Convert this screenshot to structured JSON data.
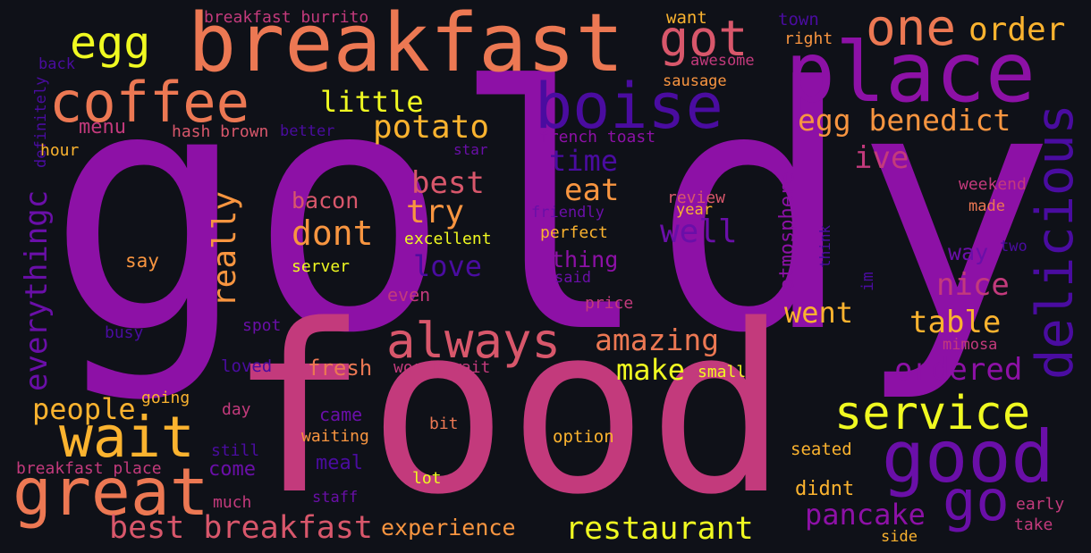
{
  "palette": {
    "background": "#0f1118",
    "purple": "#8d11a6",
    "violet": "#6a0fa8",
    "indigo": "#4a0ca0",
    "magenta": "#c33a7c",
    "pink": "#d8576b",
    "coral": "#ec7853",
    "orange": "#f89540",
    "amber": "#fbb32f",
    "yellow": "#f0f921"
  },
  "words": [
    {
      "text": "goldy",
      "color": "#8d11a6",
      "rot": 0
    },
    {
      "text": "food",
      "color": "#c33a7c",
      "rot": 0
    },
    {
      "text": "breakfast",
      "color": "#ec7853",
      "rot": 0
    },
    {
      "text": "place",
      "color": "#8d11a6",
      "rot": 0
    },
    {
      "text": "coffee",
      "color": "#ec7853",
      "rot": 0
    },
    {
      "text": "egg",
      "color": "#f0f921",
      "rot": 0
    },
    {
      "text": "got",
      "color": "#d8576b",
      "rot": 0
    },
    {
      "text": "boise",
      "color": "#4a0ca0",
      "rot": 0
    },
    {
      "text": "one",
      "color": "#ec7853",
      "rot": 0
    },
    {
      "text": "order",
      "color": "#fbb32f",
      "rot": 0
    },
    {
      "text": "delicious",
      "color": "#4a0ca0",
      "rot": -90
    },
    {
      "text": "egg benedict",
      "color": "#f89540",
      "rot": 0
    },
    {
      "text": "ive",
      "color": "#c33a7c",
      "rot": 0
    },
    {
      "text": "good",
      "color": "#6a0fa8",
      "rot": 0
    },
    {
      "text": "go",
      "color": "#6a0fa8",
      "rot": 0
    },
    {
      "text": "service",
      "color": "#f0f921",
      "rot": 0
    },
    {
      "text": "great",
      "color": "#ec7853",
      "rot": 0
    },
    {
      "text": "wait",
      "color": "#fbb32f",
      "rot": 0
    },
    {
      "text": "always",
      "color": "#d8576b",
      "rot": 0
    },
    {
      "text": "little",
      "color": "#f0f921",
      "rot": 0
    },
    {
      "text": "potato",
      "color": "#fbb32f",
      "rot": 0
    },
    {
      "text": "menu",
      "color": "#c33a7c",
      "rot": 0
    },
    {
      "text": "time",
      "color": "#4a0ca0",
      "rot": 0
    },
    {
      "text": "best",
      "color": "#d8576b",
      "rot": 0
    },
    {
      "text": "eat",
      "color": "#f89540",
      "rot": 0
    },
    {
      "text": "try",
      "color": "#f89540",
      "rot": 0
    },
    {
      "text": "well",
      "color": "#6a0fa8",
      "rot": 0
    },
    {
      "text": "dont",
      "color": "#f89540",
      "rot": 0
    },
    {
      "text": "bacon",
      "color": "#d8576b",
      "rot": 0
    },
    {
      "text": "love",
      "color": "#4a0ca0",
      "rot": 0
    },
    {
      "text": "really",
      "color": "#f89540",
      "rot": -90
    },
    {
      "text": "everythingc",
      "color": "#6a0fa8",
      "rot": -90
    },
    {
      "text": "amazing",
      "color": "#ec7853",
      "rot": 0
    },
    {
      "text": "nice",
      "color": "#c33a7c",
      "rot": 0
    },
    {
      "text": "went",
      "color": "#fbb32f",
      "rot": 0
    },
    {
      "text": "table",
      "color": "#fbb32f",
      "rot": 0
    },
    {
      "text": "ordered",
      "color": "#8d11a6",
      "rot": 0
    },
    {
      "text": "make",
      "color": "#f0f921",
      "rot": 0
    },
    {
      "text": "people",
      "color": "#fbb32f",
      "rot": 0
    },
    {
      "text": "best breakfast",
      "color": "#d8576b",
      "rot": 0
    },
    {
      "text": "experience",
      "color": "#f89540",
      "rot": 0
    },
    {
      "text": "restaurant",
      "color": "#f0f921",
      "rot": 0
    },
    {
      "text": "pancake",
      "color": "#8d11a6",
      "rot": 0
    },
    {
      "text": "atmosphere",
      "color": "#8d11a6",
      "rot": -90
    },
    {
      "text": "thing",
      "color": "#8d11a6",
      "rot": 0
    },
    {
      "text": "fresh",
      "color": "#ec7853",
      "rot": 0
    },
    {
      "text": "came",
      "color": "#6a0fa8",
      "rot": 0
    },
    {
      "text": "meal",
      "color": "#4a0ca0",
      "rot": 0
    },
    {
      "text": "come",
      "color": "#6a0fa8",
      "rot": 0
    },
    {
      "text": "even",
      "color": "#c33a7c",
      "rot": 0
    },
    {
      "text": "say",
      "color": "#f89540",
      "rot": 0
    },
    {
      "text": "way",
      "color": "#6a0fa8",
      "rot": 0
    },
    {
      "text": "didnt",
      "color": "#fbb32f",
      "rot": 0
    },
    {
      "text": "breakfast burrito",
      "color": "#c33a7c",
      "rot": 0
    },
    {
      "text": "want",
      "color": "#fbb32f",
      "rot": 0
    },
    {
      "text": "town",
      "color": "#4a0ca0",
      "rot": 0
    },
    {
      "text": "right",
      "color": "#f89540",
      "rot": 0
    },
    {
      "text": "awesome",
      "color": "#c33a7c",
      "rot": 0
    },
    {
      "text": "back",
      "color": "#4a0ca0",
      "rot": 0
    },
    {
      "text": "definitely",
      "color": "#4a0ca0",
      "rot": -90
    },
    {
      "text": "hour",
      "color": "#fbb32f",
      "rot": 0
    },
    {
      "text": "hash brown",
      "color": "#d8576b",
      "rot": 0
    },
    {
      "text": "better",
      "color": "#4a0ca0",
      "rot": 0
    },
    {
      "text": "sausage",
      "color": "#f89540",
      "rot": 0
    },
    {
      "text": "french toast",
      "color": "#8d11a6",
      "rot": 0
    },
    {
      "text": "star",
      "color": "#6a0fa8",
      "rot": 0
    },
    {
      "text": "review",
      "color": "#d8576b",
      "rot": 0
    },
    {
      "text": "year",
      "color": "#fbb32f",
      "rot": 0
    },
    {
      "text": "friendly",
      "color": "#6a0fa8",
      "rot": 0
    },
    {
      "text": "weekend",
      "color": "#c33a7c",
      "rot": 0
    },
    {
      "text": "made",
      "color": "#ec7853",
      "rot": 0
    },
    {
      "text": "excellent",
      "color": "#f0f921",
      "rot": 0
    },
    {
      "text": "perfect",
      "color": "#fbb32f",
      "rot": 0
    },
    {
      "text": "two",
      "color": "#4a0ca0",
      "rot": 0
    },
    {
      "text": "think",
      "color": "#4a0ca0",
      "rot": -90
    },
    {
      "text": "im",
      "color": "#4a0ca0",
      "rot": -90
    },
    {
      "text": "server",
      "color": "#f0f921",
      "rot": 0
    },
    {
      "text": "said",
      "color": "#6a0fa8",
      "rot": 0
    },
    {
      "text": "price",
      "color": "#c33a7c",
      "rot": 0
    },
    {
      "text": "spot",
      "color": "#6a0fa8",
      "rot": 0
    },
    {
      "text": "busy",
      "color": "#4a0ca0",
      "rot": 0
    },
    {
      "text": "mimosa",
      "color": "#c33a7c",
      "rot": 0
    },
    {
      "text": "loved",
      "color": "#4a0ca0",
      "rot": 0
    },
    {
      "text": "worth wait",
      "color": "#c33a7c",
      "rot": 0
    },
    {
      "text": "small",
      "color": "#f0f921",
      "rot": 0
    },
    {
      "text": "going",
      "color": "#fbb32f",
      "rot": 0
    },
    {
      "text": "day",
      "color": "#c33a7c",
      "rot": 0
    },
    {
      "text": "bit",
      "color": "#ec7853",
      "rot": 0
    },
    {
      "text": "still",
      "color": "#4a0ca0",
      "rot": 0
    },
    {
      "text": "waiting",
      "color": "#f89540",
      "rot": 0
    },
    {
      "text": "option",
      "color": "#fbb32f",
      "rot": 0
    },
    {
      "text": "seated",
      "color": "#fbb32f",
      "rot": 0
    },
    {
      "text": "breakfast place",
      "color": "#c33a7c",
      "rot": 0
    },
    {
      "text": "lot",
      "color": "#f0f921",
      "rot": 0
    },
    {
      "text": "much",
      "color": "#c33a7c",
      "rot": 0
    },
    {
      "text": "staff",
      "color": "#6a0fa8",
      "rot": 0
    },
    {
      "text": "early",
      "color": "#c33a7c",
      "rot": 0
    },
    {
      "text": "take",
      "color": "#c33a7c",
      "rot": 0
    },
    {
      "text": "side",
      "color": "#fbb32f",
      "rot": 0
    }
  ]
}
